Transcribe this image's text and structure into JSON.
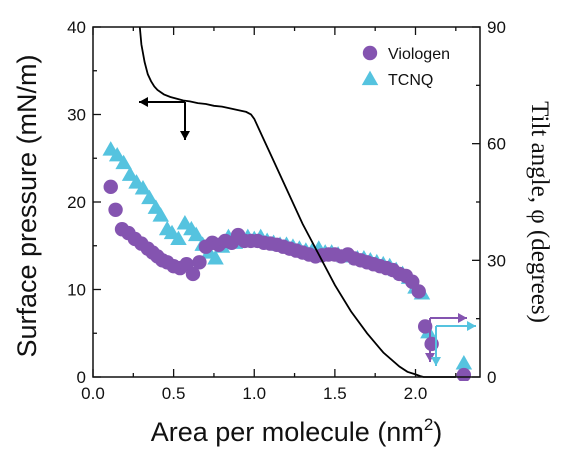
{
  "chart_data": {
    "type": "scatter",
    "title": "",
    "xlabel": "Area per molecule (nm",
    "xlabel_sup": "2",
    "xlabel_end": ")",
    "ylabel_left": "Surface pressure (mN/m)",
    "ylabel_right": "Tilt angle, φ (degrees)",
    "xlim": [
      0,
      2.4
    ],
    "ylim_left": [
      0,
      40
    ],
    "ylim_right": [
      0,
      90
    ],
    "x_ticks": [
      "0.0",
      "0.5",
      "1.0",
      "1.5",
      "2.0"
    ],
    "x_tick_values": [
      0,
      0.5,
      1.0,
      1.5,
      2.0
    ],
    "y_left_ticks": [
      "0",
      "10",
      "20",
      "30",
      "40"
    ],
    "y_left_tick_values": [
      0,
      10,
      20,
      30,
      40
    ],
    "y_right_ticks": [
      "0",
      "30",
      "60",
      "90"
    ],
    "y_right_tick_values": [
      0,
      30,
      60,
      90
    ],
    "legend_position": "top-right",
    "colors": {
      "viologen": "#8454b0",
      "tcnq": "#55c3df",
      "isotherm": "#000000"
    },
    "series": [
      {
        "name": "Viologen",
        "axis": "right",
        "marker": "circle",
        "x": [
          0.11,
          0.14,
          0.18,
          0.22,
          0.26,
          0.3,
          0.34,
          0.37,
          0.4,
          0.43,
          0.46,
          0.5,
          0.54,
          0.58,
          0.62,
          0.66,
          0.7,
          0.74,
          0.78,
          0.82,
          0.86,
          0.9,
          0.94,
          0.98,
          1.02,
          1.06,
          1.1,
          1.14,
          1.18,
          1.22,
          1.26,
          1.3,
          1.34,
          1.38,
          1.42,
          1.46,
          1.5,
          1.54,
          1.58,
          1.62,
          1.66,
          1.7,
          1.74,
          1.78,
          1.82,
          1.86,
          1.9,
          1.94,
          1.98,
          2.02,
          2.06,
          2.1,
          2.3
        ],
        "y": [
          48.9,
          43.0,
          38.0,
          37.0,
          35.5,
          34.3,
          33.0,
          32.0,
          31.0,
          30.0,
          29.5,
          28.5,
          28.0,
          29.0,
          26.5,
          29.5,
          33.5,
          34.5,
          34.0,
          35.0,
          34.5,
          36.5,
          35.0,
          35.0,
          35.0,
          34.5,
          34.3,
          34.0,
          33.5,
          33.0,
          32.5,
          32.0,
          31.5,
          31.0,
          31.3,
          31.5,
          31.5,
          31.0,
          31.5,
          30.5,
          30.0,
          29.5,
          29.0,
          28.5,
          28.0,
          27.5,
          26.5,
          26.0,
          24.5,
          22.0,
          13.0,
          8.5,
          0.5
        ]
      },
      {
        "name": "TCNQ",
        "axis": "right",
        "marker": "triangle",
        "x": [
          0.11,
          0.15,
          0.19,
          0.23,
          0.27,
          0.31,
          0.35,
          0.39,
          0.42,
          0.46,
          0.49,
          0.53,
          0.57,
          0.61,
          0.64,
          0.68,
          0.72,
          0.76,
          0.8,
          0.84,
          0.88,
          0.92,
          0.96,
          1.0,
          1.04,
          1.08,
          1.12,
          1.16,
          1.2,
          1.24,
          1.28,
          1.32,
          1.36,
          1.4,
          1.44,
          1.48,
          1.52,
          1.56,
          1.6,
          1.64,
          1.68,
          1.72,
          1.76,
          1.8,
          1.84,
          1.88,
          1.92,
          1.96,
          2.0,
          2.04,
          2.08,
          2.3
        ],
        "y": [
          58.5,
          57.0,
          55.0,
          52.0,
          50.0,
          48.5,
          46.0,
          43.5,
          41.5,
          38.0,
          37.0,
          35.5,
          39.5,
          38.0,
          36.5,
          34.0,
          32.0,
          30.5,
          33.5,
          36.0,
          34.5,
          35.5,
          36.0,
          35.5,
          36.0,
          35.0,
          34.5,
          34.0,
          34.0,
          33.5,
          33.0,
          32.5,
          32.5,
          33.0,
          32.0,
          32.0,
          31.5,
          31.0,
          31.0,
          30.5,
          30.5,
          30.0,
          29.5,
          29.0,
          28.5,
          27.5,
          26.5,
          25.5,
          23.0,
          21.5,
          11.5,
          3.5
        ]
      },
      {
        "name": "",
        "axis": "left",
        "marker": "line",
        "x": [
          0.29,
          0.3,
          0.32,
          0.34,
          0.36,
          0.38,
          0.4,
          0.44,
          0.48,
          0.52,
          0.56,
          0.6,
          0.65,
          0.7,
          0.75,
          0.8,
          0.85,
          0.9,
          0.95,
          0.98,
          1.0,
          1.05,
          1.1,
          1.2,
          1.3,
          1.4,
          1.5,
          1.6,
          1.7,
          1.8,
          1.9,
          1.95,
          2.0,
          2.03,
          2.05,
          2.1,
          2.25
        ],
        "y": [
          40.0,
          38.0,
          36.0,
          34.6,
          33.8,
          33.2,
          32.8,
          32.3,
          32.0,
          31.8,
          31.6,
          31.5,
          31.3,
          31.2,
          31.0,
          30.9,
          30.7,
          30.5,
          30.3,
          30.0,
          29.5,
          27.5,
          25.5,
          21.5,
          17.5,
          14.0,
          10.5,
          7.5,
          5.0,
          2.8,
          1.2,
          0.6,
          0.3,
          0.1,
          0.0,
          0.0,
          0.0
        ]
      }
    ]
  }
}
